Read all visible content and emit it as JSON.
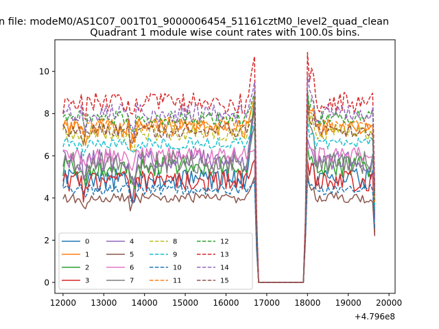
{
  "figure": {
    "suptitle": "n file: modeM0/AS1C07_001T01_9000006454_51161cztM0_level2_quad_clean",
    "offset_label": "+4.796e8"
  },
  "chart_data": {
    "type": "line",
    "title": "Quadrant 1 module wise count rates with 100.0s bins.",
    "xlabel": "",
    "ylabel": "",
    "x_offset": 479600000,
    "xlim": [
      11800,
      20150
    ],
    "ylim": [
      -0.52,
      11.5
    ],
    "x_ticks": [
      12000,
      13000,
      14000,
      15000,
      16000,
      17000,
      18000,
      19000,
      20000
    ],
    "x_tick_labels": [
      "12000",
      "13000",
      "14000",
      "15000",
      "16000",
      "17000",
      "18000",
      "19000",
      "20000"
    ],
    "y_ticks": [
      0,
      2,
      4,
      6,
      8,
      10
    ],
    "y_tick_labels": [
      "0",
      "2",
      "4",
      "6",
      "8",
      "10"
    ],
    "grid": false,
    "legend_placement": "lower-left",
    "legend_columns": 4,
    "gap": {
      "start": 16700,
      "end": 18000,
      "plateau_end": 17900,
      "value": 0
    },
    "x_range": {
      "start": 12000,
      "last": 19650,
      "step": 50
    },
    "series": [
      {
        "name": "0",
        "color": "#1f77b4",
        "dash": "solid",
        "mean": 4.9,
        "amp": 0.5,
        "peak_before": 8.6,
        "peak_after": 5.7,
        "last": 2.3
      },
      {
        "name": "1",
        "color": "#ff7f0e",
        "dash": "solid",
        "mean": 7.3,
        "amp": 0.45,
        "peak_before": 8.8,
        "peak_after": 8.7,
        "last": 4.3
      },
      {
        "name": "2",
        "color": "#2ca02c",
        "dash": "solid",
        "mean": 5.5,
        "amp": 0.5,
        "peak_before": 8.7,
        "peak_after": 6.4,
        "last": 3.2
      },
      {
        "name": "3",
        "color": "#d62728",
        "dash": "solid",
        "mean": 4.8,
        "amp": 0.5,
        "peak_before": 5.8,
        "peak_after": 5.8,
        "last": 2.2
      },
      {
        "name": "4",
        "color": "#9467bd",
        "dash": "solid",
        "mean": 5.8,
        "amp": 0.5,
        "peak_before": 8.3,
        "peak_after": 6.8,
        "last": 3.0
      },
      {
        "name": "5",
        "color": "#8c564b",
        "dash": "solid",
        "mean": 4.0,
        "amp": 0.25,
        "peak_before": 5.0,
        "peak_after": 5.2,
        "last": 2.2
      },
      {
        "name": "6",
        "color": "#e377c2",
        "dash": "solid",
        "mean": 6.0,
        "amp": 0.4,
        "peak_before": 6.3,
        "peak_after": 6.3,
        "last": 3.5
      },
      {
        "name": "7",
        "color": "#7f7f7f",
        "dash": "solid",
        "mean": 5.7,
        "amp": 0.55,
        "peak_before": 7.4,
        "peak_after": 9.1,
        "last": 3.3
      },
      {
        "name": "8",
        "color": "#bcbd22",
        "dash": "dashed",
        "mean": 7.1,
        "amp": 0.4,
        "peak_before": 8.9,
        "peak_after": 8.4,
        "last": 3.9
      },
      {
        "name": "9",
        "color": "#17becf",
        "dash": "dashed",
        "mean": 6.6,
        "amp": 0.3,
        "peak_before": 7.6,
        "peak_after": 7.7,
        "last": 3.5
      },
      {
        "name": "10",
        "color": "#1f77b4",
        "dash": "dashed",
        "mean": 4.4,
        "amp": 0.25,
        "peak_before": 4.8,
        "peak_after": 4.9,
        "last": 2.6
      },
      {
        "name": "11",
        "color": "#ff7f0e",
        "dash": "dashed",
        "mean": 7.5,
        "amp": 0.35,
        "peak_before": 8.7,
        "peak_after": 8.4,
        "last": 3.8
      },
      {
        "name": "12",
        "color": "#2ca02c",
        "dash": "dashed",
        "mean": 7.8,
        "amp": 0.35,
        "peak_before": 9.0,
        "peak_after": 9.1,
        "last": 4.2
      },
      {
        "name": "13",
        "color": "#d62728",
        "dash": "dashed",
        "mean": 8.5,
        "amp": 0.5,
        "peak_before": 10.7,
        "peak_after": 10.9,
        "last": 4.6
      },
      {
        "name": "14",
        "color": "#9467bd",
        "dash": "dashed",
        "mean": 8.0,
        "amp": 0.45,
        "peak_before": 9.5,
        "peak_after": 9.8,
        "last": 4.3
      },
      {
        "name": "15",
        "color": "#8c564b",
        "dash": "dashed",
        "mean": 7.2,
        "amp": 0.35,
        "peak_before": 8.1,
        "peak_after": 8.4,
        "last": 3.9
      }
    ]
  }
}
